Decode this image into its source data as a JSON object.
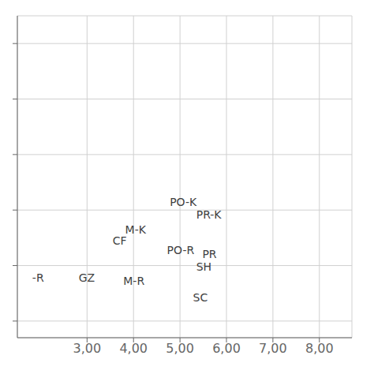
{
  "chart_data": {
    "type": "scatter",
    "marker": "none",
    "color": "#404040",
    "grid": true,
    "tick_labels": "x",
    "annotations": [
      {
        "text": "PO-K",
        "x": 4.78,
        "y": 6.15
      },
      {
        "text": "PR-K",
        "x": 5.35,
        "y": 5.92
      },
      {
        "text": "M-K",
        "x": 3.82,
        "y": 5.65
      },
      {
        "text": "CF",
        "x": 3.55,
        "y": 5.45
      },
      {
        "text": "PO-R",
        "x": 4.72,
        "y": 5.28
      },
      {
        "text": "PR",
        "x": 5.48,
        "y": 5.2
      },
      {
        "text": "SH",
        "x": 5.35,
        "y": 4.98
      },
      {
        "text": "GZ",
        "x": 2.82,
        "y": 4.78
      },
      {
        "text": "M-R",
        "x": 3.78,
        "y": 4.72
      },
      {
        "text": "SC",
        "x": 5.28,
        "y": 4.42
      },
      {
        "text": "-R",
        "x": 1.82,
        "y": 4.78
      }
    ],
    "xlim": [
      1.5,
      8.7
    ],
    "ylim": [
      3.7,
      9.5
    ],
    "xticks": [
      {
        "value": 3.0,
        "label": "3,00"
      },
      {
        "value": 4.0,
        "label": "4,00"
      },
      {
        "value": 5.0,
        "label": "5,00"
      },
      {
        "value": 6.0,
        "label": "6,00"
      },
      {
        "value": 7.0,
        "label": "7,00"
      },
      {
        "value": 8.0,
        "label": "8,00"
      }
    ],
    "yticks": [
      4.0,
      5.0,
      6.0,
      7.0,
      8.0,
      9.0
    ]
  }
}
